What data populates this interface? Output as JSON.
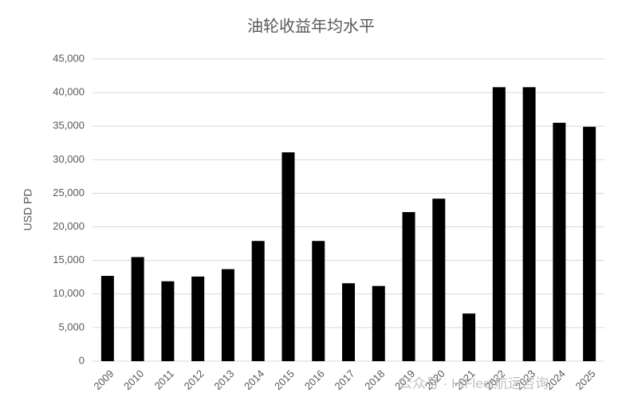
{
  "chart_data": {
    "type": "bar",
    "title": "油轮收益年均水平",
    "y_label": "USD PD",
    "categories": [
      "2009",
      "2010",
      "2011",
      "2012",
      "2013",
      "2014",
      "2015",
      "2016",
      "2017",
      "2018",
      "2019",
      "2020",
      "2021",
      "2022",
      "2023",
      "2024",
      "2025"
    ],
    "values": [
      12700,
      15500,
      11900,
      12600,
      13700,
      17900,
      31100,
      17900,
      11600,
      11200,
      22200,
      24200,
      7100,
      40800,
      40800,
      35500,
      34900
    ],
    "color": "#000000",
    "ylim": [
      0,
      45000
    ],
    "yticks": [
      0,
      {
        "value": 5000,
        "label": "5,000"
      },
      {
        "value": 10000,
        "label": "10,000"
      },
      {
        "value": 15000,
        "label": "15,000"
      },
      {
        "value": 20000,
        "label": "20,000"
      },
      {
        "value": 25000,
        "label": "25,000"
      },
      {
        "value": 30000,
        "label": "30,000"
      },
      {
        "value": 35000,
        "label": "35,000"
      },
      {
        "value": 40000,
        "label": "40,000"
      },
      {
        "value": 45000,
        "label": "45,000"
      }
    ],
    "grid": true,
    "watermark": "公众号 · HiFleet航运咨询"
  }
}
